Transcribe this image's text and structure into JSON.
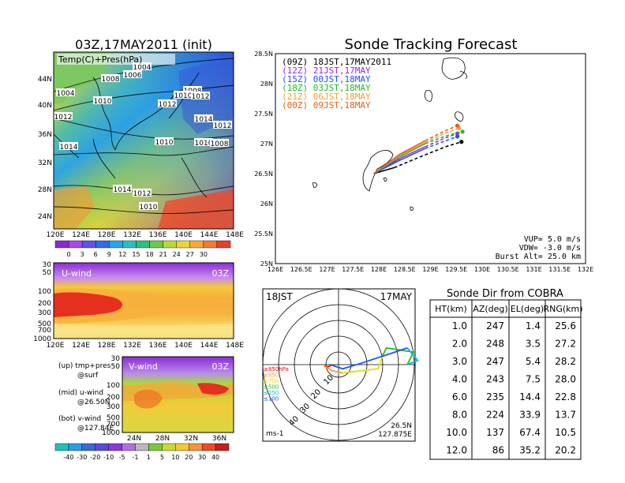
{
  "left": {
    "map_title": "03Z,17MAY2011 (init)",
    "map_label": "Temp(C)+Pres(hPa)",
    "lat_ticks": [
      "44N",
      "40N",
      "36N",
      "32N",
      "28N",
      "24N"
    ],
    "lon_ticks": [
      "120E",
      "124E",
      "128E",
      "132E",
      "136E",
      "140E",
      "144E",
      "148E"
    ],
    "pressure_labels": [
      "1004",
      "1006",
      "1008",
      "1008",
      "1004",
      "1010",
      "1012",
      "1010",
      "1012",
      "1012",
      "1014",
      "1012",
      "1010",
      "1010",
      "1008",
      "1014",
      "1014",
      "1012",
      "1010"
    ],
    "temp_colorbar": [
      "0",
      "3",
      "6",
      "9",
      "12",
      "15",
      "18",
      "21",
      "24",
      "27",
      "30"
    ],
    "uwind_label": "U-wind",
    "uwind_time": "03Z",
    "pres_ticks": [
      "30",
      "50",
      "100",
      "200",
      "300",
      "500",
      "700",
      "1000"
    ],
    "uwind_lon_ticks": [
      "120E",
      "124E",
      "128E",
      "132E",
      "136E",
      "140E",
      "144E",
      "148E"
    ],
    "vwind_label": "V-wind",
    "vwind_time": "03Z",
    "vwind_lat_ticks": [
      "24N",
      "28N",
      "32N",
      "36N"
    ],
    "vwind_pres_ticks": [
      "30",
      "50",
      "100",
      "200",
      "300",
      "500",
      "700",
      "1000"
    ],
    "legend_notes": [
      {
        "line1": "(up) tmp+pres",
        "line2": "@surf"
      },
      {
        "line1": "(mid) u-wind",
        "line2": "@26.50N"
      },
      {
        "line1": "(bot) v-wind",
        "line2": "@127.84E"
      }
    ],
    "wind_colorbar": [
      "-40",
      "-30",
      "-20",
      "-10",
      "-5",
      "-1",
      "1",
      "5",
      "10",
      "20",
      "30",
      "40"
    ]
  },
  "chart_data": [
    {
      "type": "line",
      "title": "Sonde Tracking Forecast",
      "xlim": [
        126,
        132
      ],
      "ylim": [
        25,
        28.5
      ],
      "x_ticks": [
        "126E",
        "126.5E",
        "127E",
        "127.5E",
        "128E",
        "128.5E",
        "129E",
        "129.5E",
        "130E",
        "130.5E",
        "131E",
        "131.5E",
        "132E"
      ],
      "y_ticks": [
        "25N",
        "25.5N",
        "26N",
        "26.5N",
        "27N",
        "27.5N",
        "28N",
        "28.5N"
      ],
      "legend_position": "top-left",
      "series": [
        {
          "name": "(09Z)  18JST,17MAY2011",
          "color": "#000000",
          "x": [
            127.9,
            128.3,
            128.8,
            129.3,
            129.6
          ],
          "y": [
            26.5,
            26.6,
            26.78,
            26.95,
            27.03
          ],
          "solid_until": 1
        },
        {
          "name": "(12Z)  21JST,17MAY",
          "color": "#a020f0",
          "x": [
            127.9,
            128.4,
            128.9,
            129.3,
            129.52
          ],
          "y": [
            26.5,
            26.75,
            26.95,
            27.1,
            27.17
          ],
          "solid_until": 2
        },
        {
          "name": "(15Z)  00JST,18MAY",
          "color": "#1e50ff",
          "x": [
            127.9,
            128.4,
            128.9,
            129.3,
            129.52
          ],
          "y": [
            26.5,
            26.72,
            26.92,
            27.05,
            27.12
          ],
          "solid_until": 2
        },
        {
          "name": "(18Z)  03JST,18MAY",
          "color": "#22bb22",
          "x": [
            127.9,
            128.4,
            128.9,
            129.3,
            129.62
          ],
          "y": [
            26.5,
            26.78,
            27.0,
            27.13,
            27.2
          ],
          "solid_until": 2
        },
        {
          "name": "(21Z)  06JST,18MAY",
          "color": "#ff9933",
          "x": [
            127.9,
            128.4,
            128.9,
            129.3,
            129.55
          ],
          "y": [
            26.5,
            26.8,
            27.02,
            27.18,
            27.26
          ],
          "solid_until": 2
        },
        {
          "name": "(00Z)  09JST,18MAY",
          "color": "#e06020",
          "x": [
            127.9,
            128.4,
            128.9,
            129.3,
            129.52
          ],
          "y": [
            26.5,
            26.82,
            27.05,
            27.22,
            27.3
          ],
          "solid_until": 2
        }
      ],
      "annotations": [
        "VUP= 5.0 m/s",
        "VDW= -3.0 m/s",
        "Burst Alt= 25.0 km"
      ]
    },
    {
      "type": "polar",
      "time_label": "18JST",
      "date_label": "17MAY",
      "ring_labels": [
        "10",
        "20",
        "30",
        "40"
      ],
      "unit_label": "ms-1",
      "location_lines": [
        "26.5N",
        "127.875E"
      ],
      "level_legend": [
        {
          "label": "≥850hPa",
          "color": "#ff0000"
        },
        {
          "label": "≤850",
          "color": "#ff9933"
        },
        {
          "label": "≤700",
          "color": "#e0e000"
        },
        {
          "label": "≤500",
          "color": "#22bb22"
        },
        {
          "label": "≤250",
          "color": "#00bbdd"
        },
        {
          "label": "≤100",
          "color": "#1e50ff"
        }
      ],
      "hodograph": [
        {
          "color": "#ff0000",
          "u": [
            -1.5,
            -2.5,
            -3.5
          ],
          "v": [
            0,
            -0.5,
            -0.3
          ]
        },
        {
          "color": "#ff9933",
          "u": [
            -3.5,
            -1.5,
            1.0
          ],
          "v": [
            -0.3,
            -1.5,
            -2.0
          ]
        },
        {
          "color": "#e0e000",
          "u": [
            1.0,
            5.0,
            9.5,
            10.5
          ],
          "v": [
            -2.0,
            -1.5,
            -1.0,
            2.0
          ]
        },
        {
          "color": "#22bb22",
          "u": [
            10.5,
            11.5,
            18.0,
            16.5
          ],
          "v": [
            2.0,
            4.0,
            3.0,
            0.0
          ]
        },
        {
          "color": "#00bbdd",
          "u": [
            16.5,
            19.0,
            16.5
          ],
          "v": [
            0.0,
            1.0,
            4.0
          ]
        },
        {
          "color": "#1e50ff",
          "u": [
            16.5,
            9.0,
            5.0,
            1.0,
            -2.0
          ],
          "v": [
            4.0,
            1.5,
            0.2,
            -1.0,
            0.0
          ]
        }
      ]
    },
    {
      "type": "table",
      "title": "Sonde Dir from COBRA",
      "columns": [
        "HT(km)",
        "AZ(deg)",
        "EL(deg)",
        "RNG(km)"
      ],
      "rows": [
        [
          "1.0",
          "247",
          "1.4",
          "25.6"
        ],
        [
          "2.0",
          "248",
          "3.5",
          "27.2"
        ],
        [
          "3.0",
          "247",
          "5.4",
          "28.2"
        ],
        [
          "4.0",
          "243",
          "7.5",
          "28.0"
        ],
        [
          "6.0",
          "235",
          "14.4",
          "22.8"
        ],
        [
          "8.0",
          "224",
          "33.9",
          "13.7"
        ],
        [
          "10.0",
          "137",
          "67.4",
          "10.5"
        ],
        [
          "12.0",
          "86",
          "35.2",
          "20.2"
        ]
      ]
    }
  ]
}
